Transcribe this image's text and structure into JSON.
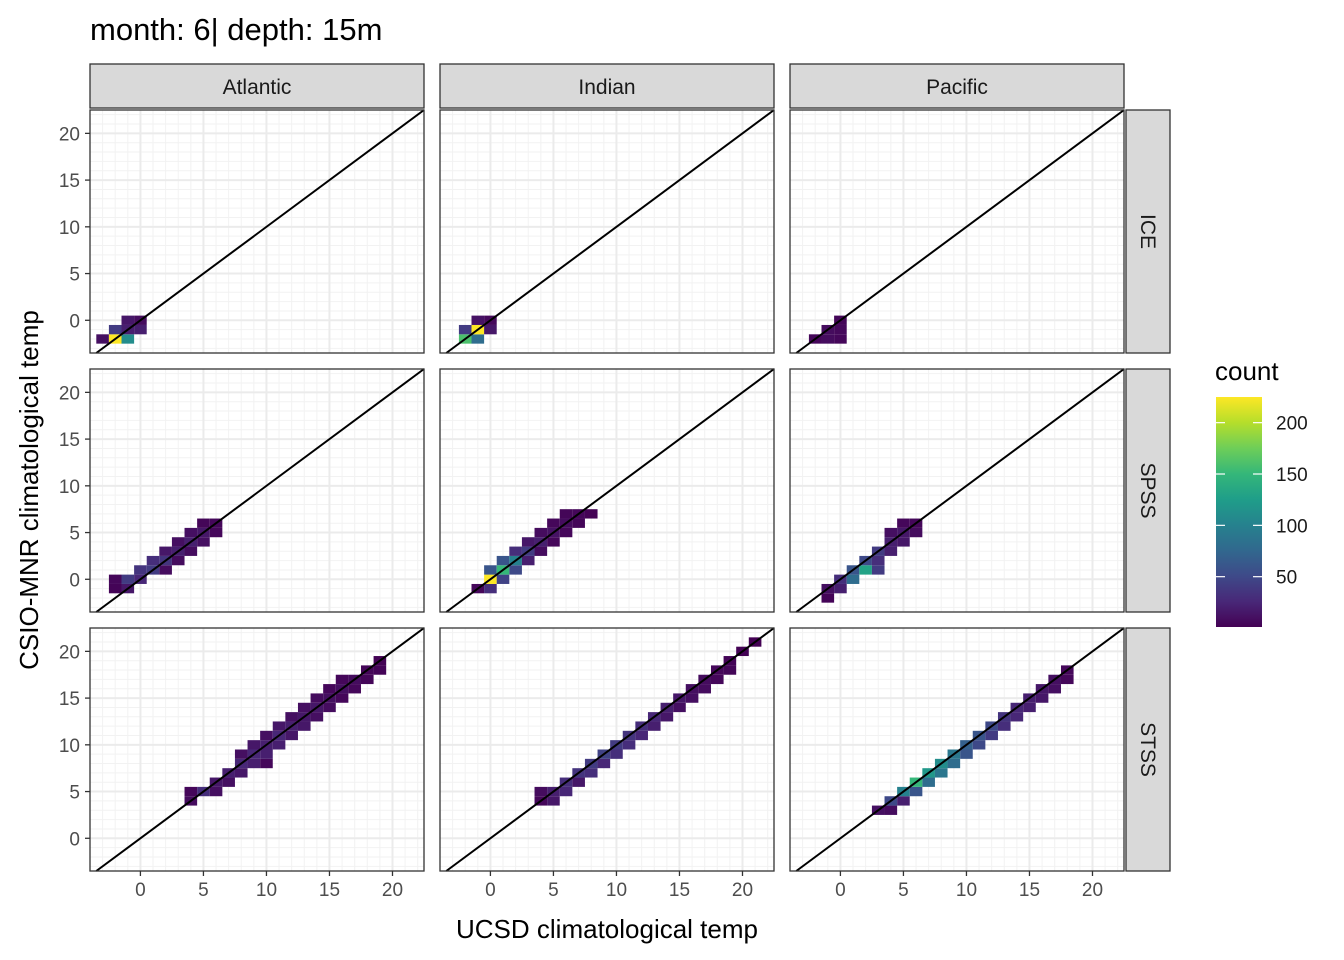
{
  "title": "month: 6| depth: 15m",
  "chart_data": {
    "type": "heatmap",
    "subtype": "faceted 2D-binned scatter (geom_bin2d) with identity line y = x",
    "title": "month: 6| depth: 15m",
    "xlabel": "UCSD climatological temp",
    "ylabel": "CSIO-MNR climatological temp",
    "xlim": [
      -4,
      22.5
    ],
    "ylim": [
      -3.5,
      22.5
    ],
    "x_ticks": [
      0,
      5,
      10,
      15,
      20
    ],
    "y_ticks": [
      0,
      5,
      10,
      15,
      20
    ],
    "bin_width": 1,
    "grid": true,
    "reference_line": {
      "slope": 1,
      "intercept": 0,
      "color": "#000000"
    },
    "facet_columns": [
      "Atlantic",
      "Indian",
      "Pacific"
    ],
    "facet_rows": [
      "ICE",
      "SPSS",
      "STSS"
    ],
    "legend": {
      "title": "count",
      "position": "right",
      "min": 1,
      "max": 225,
      "ticks": [
        50,
        100,
        150,
        200
      ],
      "colormap": "viridis",
      "colors": [
        "#440154",
        "#482878",
        "#3e4a89",
        "#31688e",
        "#26828e",
        "#1f9e89",
        "#35b779",
        "#6ece58",
        "#b5de2b",
        "#fde725"
      ]
    },
    "panels": [
      {
        "column": "Atlantic",
        "row": "ICE",
        "cells": [
          [
            -3,
            -2,
            10
          ],
          [
            -2,
            -2,
            225
          ],
          [
            -1,
            -2,
            110
          ],
          [
            -2,
            -1,
            40
          ],
          [
            -1,
            -1,
            20
          ],
          [
            0,
            -1,
            20
          ],
          [
            -1,
            0,
            15
          ],
          [
            0,
            0,
            8
          ]
        ]
      },
      {
        "column": "Indian",
        "row": "ICE",
        "cells": [
          [
            -2,
            -2,
            160
          ],
          [
            -1,
            -2,
            80
          ],
          [
            -2,
            -1,
            40
          ],
          [
            -1,
            -1,
            225
          ],
          [
            0,
            -1,
            15
          ],
          [
            -1,
            0,
            12
          ],
          [
            0,
            0,
            6
          ]
        ]
      },
      {
        "column": "Pacific",
        "row": "ICE",
        "cells": [
          [
            -2,
            -2,
            5
          ],
          [
            -1,
            -2,
            8
          ],
          [
            0,
            -2,
            5
          ],
          [
            -1,
            -1,
            8
          ],
          [
            0,
            -1,
            6
          ],
          [
            0,
            0,
            4
          ]
        ]
      },
      {
        "column": "Atlantic",
        "row": "SPSS",
        "cells": [
          [
            -2,
            -1,
            3
          ],
          [
            -1,
            -1,
            15
          ],
          [
            -2,
            0,
            5
          ],
          [
            -1,
            0,
            40
          ],
          [
            0,
            0,
            25
          ],
          [
            0,
            1,
            35
          ],
          [
            1,
            1,
            40
          ],
          [
            2,
            1,
            8
          ],
          [
            1,
            2,
            30
          ],
          [
            2,
            2,
            35
          ],
          [
            3,
            2,
            8
          ],
          [
            2,
            3,
            15
          ],
          [
            3,
            3,
            20
          ],
          [
            4,
            3,
            8
          ],
          [
            3,
            4,
            10
          ],
          [
            4,
            4,
            20
          ],
          [
            5,
            4,
            10
          ],
          [
            4,
            5,
            10
          ],
          [
            5,
            5,
            15
          ],
          [
            6,
            5,
            5
          ],
          [
            5,
            6,
            4
          ],
          [
            6,
            6,
            5
          ]
        ]
      },
      {
        "column": "Indian",
        "row": "SPSS",
        "cells": [
          [
            -1,
            -1,
            5
          ],
          [
            0,
            -1,
            30
          ],
          [
            0,
            0,
            225
          ],
          [
            1,
            0,
            45
          ],
          [
            0,
            1,
            60
          ],
          [
            1,
            1,
            150
          ],
          [
            2,
            1,
            50
          ],
          [
            1,
            2,
            60
          ],
          [
            2,
            2,
            100
          ],
          [
            3,
            2,
            20
          ],
          [
            2,
            3,
            30
          ],
          [
            3,
            3,
            40
          ],
          [
            4,
            3,
            8
          ],
          [
            3,
            4,
            15
          ],
          [
            4,
            4,
            20
          ],
          [
            5,
            4,
            5
          ],
          [
            4,
            5,
            8
          ],
          [
            5,
            5,
            12
          ],
          [
            6,
            5,
            5
          ],
          [
            5,
            6,
            5
          ],
          [
            6,
            6,
            8
          ],
          [
            7,
            6,
            4
          ],
          [
            6,
            7,
            4
          ],
          [
            7,
            7,
            5
          ],
          [
            8,
            7,
            2
          ]
        ]
      },
      {
        "column": "Pacific",
        "row": "SPSS",
        "cells": [
          [
            -1,
            -2,
            3
          ],
          [
            -1,
            -1,
            10
          ],
          [
            0,
            -1,
            20
          ],
          [
            0,
            0,
            30
          ],
          [
            1,
            0,
            80
          ],
          [
            1,
            1,
            60
          ],
          [
            2,
            1,
            130
          ],
          [
            3,
            1,
            40
          ],
          [
            2,
            2,
            50
          ],
          [
            3,
            2,
            30
          ],
          [
            3,
            3,
            40
          ],
          [
            4,
            3,
            20
          ],
          [
            4,
            4,
            20
          ],
          [
            5,
            4,
            15
          ],
          [
            4,
            5,
            10
          ],
          [
            5,
            5,
            15
          ],
          [
            6,
            5,
            8
          ],
          [
            5,
            6,
            5
          ],
          [
            6,
            6,
            5
          ]
        ]
      },
      {
        "column": "Atlantic",
        "row": "STSS",
        "cells": [
          [
            4,
            4,
            8
          ],
          [
            4,
            5,
            5
          ],
          [
            5,
            5,
            30
          ],
          [
            6,
            5,
            10
          ],
          [
            6,
            6,
            15
          ],
          [
            7,
            6,
            10
          ],
          [
            7,
            7,
            20
          ],
          [
            8,
            7,
            15
          ],
          [
            8,
            8,
            25
          ],
          [
            9,
            8,
            20
          ],
          [
            10,
            8,
            5
          ],
          [
            8,
            9,
            10
          ],
          [
            9,
            9,
            25
          ],
          [
            10,
            9,
            20
          ],
          [
            9,
            10,
            15
          ],
          [
            10,
            10,
            20
          ],
          [
            11,
            10,
            20
          ],
          [
            10,
            11,
            10
          ],
          [
            11,
            11,
            25
          ],
          [
            12,
            11,
            15
          ],
          [
            11,
            12,
            15
          ],
          [
            12,
            12,
            20
          ],
          [
            13,
            12,
            15
          ],
          [
            12,
            13,
            10
          ],
          [
            13,
            13,
            15
          ],
          [
            14,
            13,
            10
          ],
          [
            13,
            14,
            10
          ],
          [
            14,
            14,
            15
          ],
          [
            15,
            14,
            8
          ],
          [
            14,
            15,
            8
          ],
          [
            15,
            15,
            10
          ],
          [
            16,
            15,
            5
          ],
          [
            15,
            16,
            5
          ],
          [
            16,
            16,
            10
          ],
          [
            17,
            16,
            5
          ],
          [
            16,
            17,
            5
          ],
          [
            17,
            17,
            8
          ],
          [
            18,
            17,
            4
          ],
          [
            18,
            18,
            4
          ],
          [
            19,
            18,
            3
          ],
          [
            19,
            19,
            2
          ]
        ]
      },
      {
        "column": "Indian",
        "row": "STSS",
        "cells": [
          [
            4,
            4,
            5
          ],
          [
            5,
            4,
            15
          ],
          [
            4,
            5,
            8
          ],
          [
            5,
            5,
            20
          ],
          [
            6,
            5,
            25
          ],
          [
            6,
            6,
            30
          ],
          [
            7,
            6,
            15
          ],
          [
            7,
            7,
            35
          ],
          [
            8,
            7,
            30
          ],
          [
            8,
            8,
            40
          ],
          [
            9,
            8,
            25
          ],
          [
            9,
            9,
            45
          ],
          [
            10,
            9,
            30
          ],
          [
            10,
            10,
            40
          ],
          [
            11,
            10,
            30
          ],
          [
            11,
            11,
            35
          ],
          [
            12,
            11,
            25
          ],
          [
            12,
            12,
            30
          ],
          [
            13,
            12,
            20
          ],
          [
            13,
            13,
            25
          ],
          [
            14,
            13,
            15
          ],
          [
            14,
            14,
            20
          ],
          [
            15,
            14,
            10
          ],
          [
            15,
            15,
            15
          ],
          [
            16,
            15,
            10
          ],
          [
            16,
            16,
            10
          ],
          [
            17,
            16,
            8
          ],
          [
            17,
            17,
            8
          ],
          [
            18,
            17,
            5
          ],
          [
            18,
            18,
            5
          ],
          [
            19,
            18,
            4
          ],
          [
            19,
            19,
            3
          ],
          [
            20,
            20,
            2
          ],
          [
            21,
            21,
            1
          ]
        ]
      },
      {
        "column": "Pacific",
        "row": "STSS",
        "cells": [
          [
            3,
            3,
            10
          ],
          [
            4,
            3,
            8
          ],
          [
            4,
            4,
            50
          ],
          [
            5,
            4,
            20
          ],
          [
            5,
            5,
            100
          ],
          [
            6,
            5,
            60
          ],
          [
            6,
            6,
            150
          ],
          [
            7,
            6,
            80
          ],
          [
            7,
            7,
            120
          ],
          [
            8,
            7,
            90
          ],
          [
            8,
            8,
            110
          ],
          [
            9,
            8,
            80
          ],
          [
            9,
            9,
            90
          ],
          [
            10,
            9,
            60
          ],
          [
            10,
            10,
            70
          ],
          [
            11,
            10,
            50
          ],
          [
            11,
            11,
            60
          ],
          [
            12,
            11,
            40
          ],
          [
            12,
            12,
            50
          ],
          [
            13,
            12,
            30
          ],
          [
            13,
            13,
            35
          ],
          [
            14,
            13,
            25
          ],
          [
            14,
            14,
            25
          ],
          [
            15,
            14,
            20
          ],
          [
            15,
            15,
            20
          ],
          [
            16,
            15,
            15
          ],
          [
            16,
            16,
            15
          ],
          [
            17,
            16,
            10
          ],
          [
            17,
            17,
            10
          ],
          [
            18,
            17,
            5
          ],
          [
            18,
            18,
            5
          ]
        ]
      }
    ]
  }
}
